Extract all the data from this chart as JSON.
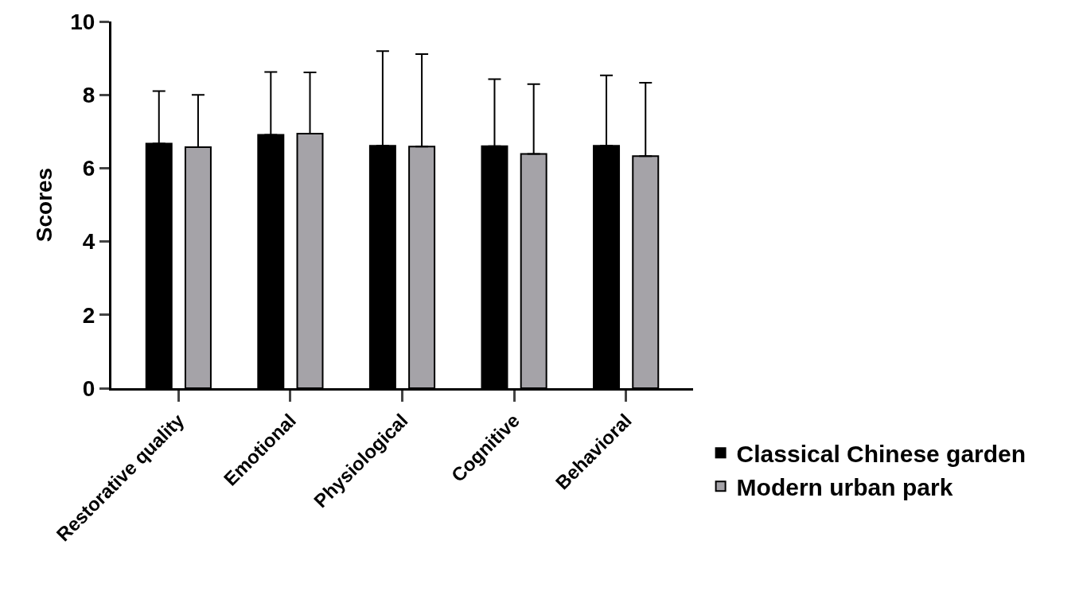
{
  "chart_data": {
    "type": "bar",
    "ylabel": "Scores",
    "categories": [
      "Restorative quality",
      "Emotional",
      "Physiological",
      "Cognitive",
      "Behavioral"
    ],
    "series": [
      {
        "name": "Classical Chinese garden",
        "color": "#000000",
        "values": [
          6.67,
          6.91,
          6.61,
          6.6,
          6.61
        ],
        "errors": [
          [
            6.67,
            8.1
          ],
          [
            6.91,
            8.62
          ],
          [
            6.61,
            9.19
          ],
          [
            6.6,
            8.43
          ],
          [
            6.61,
            8.53
          ]
        ]
      },
      {
        "name": "Modern urban park",
        "color": "#a5a3a8",
        "values": [
          6.57,
          6.94,
          6.59,
          6.39,
          6.33
        ],
        "errors": [
          [
            6.57,
            8.0
          ],
          [
            6.94,
            8.61
          ],
          [
            6.59,
            9.11
          ],
          [
            6.39,
            8.29
          ],
          [
            6.33,
            8.33
          ]
        ]
      }
    ],
    "ylim": [
      0,
      10
    ],
    "yticks": [
      0,
      2,
      4,
      6,
      8,
      10
    ],
    "legend": "bottom right"
  }
}
